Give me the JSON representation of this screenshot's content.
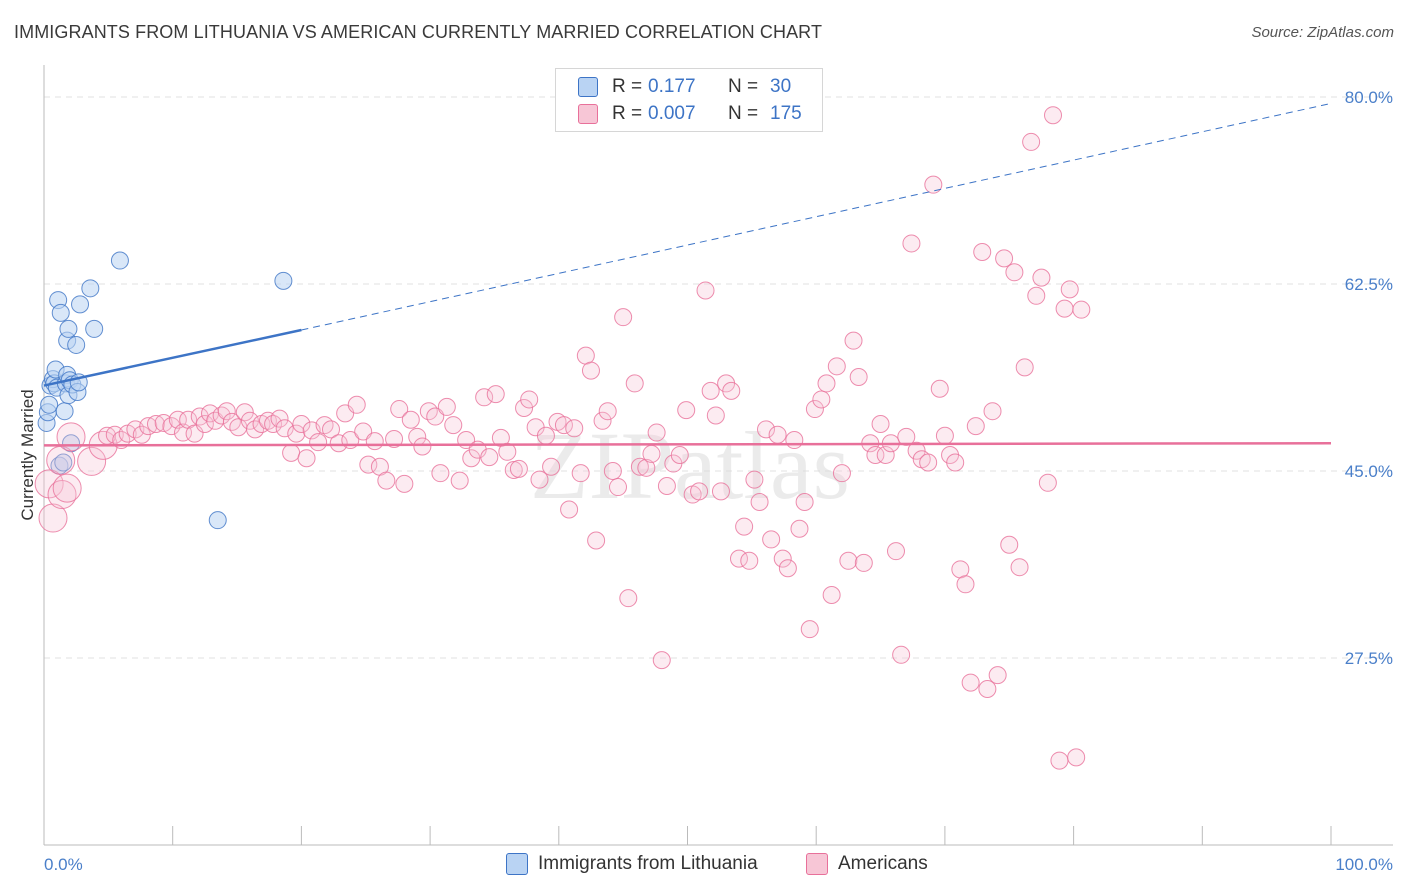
{
  "title": "IMMIGRANTS FROM LITHUANIA VS AMERICAN CURRENTLY MARRIED CORRELATION CHART",
  "source": "Source: ZipAtlas.com",
  "colors": {
    "blue": "#3d74c6",
    "blue_fill": "#b9d3f3",
    "pink": "#e8709a",
    "pink_fill": "#f7c6d6",
    "grid": "#e2e2e2",
    "tick_label": "#4a7fc9"
  },
  "legend": {
    "rows": [
      {
        "r_label": "R =",
        "r_value": "0.177",
        "n_label": "N =",
        "n_value": "30",
        "series": "blue"
      },
      {
        "r_label": "R =",
        "r_value": "0.007",
        "n_label": "N =",
        "n_value": "175",
        "series": "pink"
      }
    ]
  },
  "bottom_legend": {
    "items": [
      {
        "label": "Immigrants from Lithuania",
        "series": "blue"
      },
      {
        "label": "Americans",
        "series": "pink"
      }
    ]
  },
  "watermark": "ZIPatlas",
  "chart_data": {
    "type": "scatter",
    "title": "IMMIGRANTS FROM LITHUANIA VS AMERICAN CURRENTLY MARRIED CORRELATION CHART",
    "xlabel": "",
    "ylabel": "Currently Married",
    "xlim": [
      0,
      100
    ],
    "ylim": [
      10,
      83
    ],
    "x_tick_labels": [
      "0.0%",
      "100.0%"
    ],
    "y_ticks": [
      27.5,
      45.0,
      62.5,
      80.0
    ],
    "y_tick_labels": [
      "27.5%",
      "45.0%",
      "62.5%",
      "80.0%"
    ],
    "grid": true,
    "series": [
      {
        "name": "Immigrants from Lithuania",
        "color": "blue",
        "points": [
          [
            0.2,
            49.5
          ],
          [
            0.3,
            50.5
          ],
          [
            0.4,
            51.2
          ],
          [
            0.5,
            53.0
          ],
          [
            0.7,
            53.6
          ],
          [
            0.8,
            53.2
          ],
          [
            0.9,
            54.5
          ],
          [
            1.0,
            52.8
          ],
          [
            1.1,
            61.0
          ],
          [
            1.2,
            45.5
          ],
          [
            1.3,
            59.8
          ],
          [
            1.5,
            45.8
          ],
          [
            1.6,
            50.6
          ],
          [
            1.7,
            53.2
          ],
          [
            1.8,
            54.0
          ],
          [
            1.8,
            57.2
          ],
          [
            1.9,
            58.3
          ],
          [
            1.9,
            52.1
          ],
          [
            2.0,
            53.5
          ],
          [
            2.1,
            47.6
          ],
          [
            2.2,
            53.1
          ],
          [
            2.5,
            56.8
          ],
          [
            2.6,
            52.4
          ],
          [
            2.7,
            53.3
          ],
          [
            2.8,
            60.6
          ],
          [
            3.6,
            62.1
          ],
          [
            3.9,
            58.3
          ],
          [
            5.9,
            64.7
          ],
          [
            13.5,
            40.4
          ],
          [
            18.6,
            62.8
          ]
        ],
        "trend": {
          "x": [
            0,
            20
          ],
          "y": [
            53.0,
            58.2
          ],
          "dashed_to": [
            100,
            79.4
          ]
        }
      },
      {
        "name": "Americans",
        "color": "pink",
        "points": [
          [
            0.4,
            43.8
          ],
          [
            0.7,
            40.6
          ],
          [
            1.3,
            46.0
          ],
          [
            1.4,
            42.8
          ],
          [
            1.8,
            43.4
          ],
          [
            2.1,
            48.2
          ],
          [
            3.7,
            45.9
          ],
          [
            4.6,
            47.4
          ],
          [
            4.9,
            48.3
          ],
          [
            5.5,
            48.4
          ],
          [
            6.0,
            47.9
          ],
          [
            6.5,
            48.5
          ],
          [
            7.1,
            48.9
          ],
          [
            7.6,
            48.4
          ],
          [
            8.1,
            49.2
          ],
          [
            8.7,
            49.4
          ],
          [
            9.3,
            49.5
          ],
          [
            9.9,
            49.2
          ],
          [
            10.4,
            49.8
          ],
          [
            10.8,
            48.6
          ],
          [
            11.2,
            49.8
          ],
          [
            11.7,
            48.5
          ],
          [
            12.1,
            50.1
          ],
          [
            12.5,
            49.4
          ],
          [
            12.9,
            50.4
          ],
          [
            13.3,
            49.7
          ],
          [
            13.8,
            50.2
          ],
          [
            14.2,
            50.6
          ],
          [
            14.6,
            49.6
          ],
          [
            15.1,
            49.1
          ],
          [
            15.6,
            50.5
          ],
          [
            16.0,
            49.7
          ],
          [
            16.4,
            48.9
          ],
          [
            16.9,
            49.4
          ],
          [
            17.4,
            49.7
          ],
          [
            17.8,
            49.4
          ],
          [
            18.3,
            49.9
          ],
          [
            18.7,
            49.0
          ],
          [
            19.2,
            46.7
          ],
          [
            19.6,
            48.5
          ],
          [
            20.0,
            49.4
          ],
          [
            20.4,
            46.2
          ],
          [
            20.8,
            48.8
          ],
          [
            21.3,
            47.7
          ],
          [
            21.8,
            49.3
          ],
          [
            22.3,
            48.9
          ],
          [
            22.9,
            47.6
          ],
          [
            23.4,
            50.4
          ],
          [
            23.8,
            47.9
          ],
          [
            24.3,
            51.2
          ],
          [
            24.8,
            48.7
          ],
          [
            25.2,
            45.6
          ],
          [
            25.7,
            47.8
          ],
          [
            26.1,
            45.4
          ],
          [
            26.6,
            44.1
          ],
          [
            27.2,
            48.0
          ],
          [
            27.6,
            50.8
          ],
          [
            28.0,
            43.8
          ],
          [
            28.5,
            49.8
          ],
          [
            29.0,
            48.2
          ],
          [
            29.4,
            47.3
          ],
          [
            29.9,
            50.6
          ],
          [
            30.4,
            50.1
          ],
          [
            30.8,
            44.8
          ],
          [
            31.3,
            51.0
          ],
          [
            31.8,
            49.3
          ],
          [
            32.3,
            44.1
          ],
          [
            32.8,
            47.9
          ],
          [
            33.2,
            46.2
          ],
          [
            33.7,
            47.0
          ],
          [
            34.2,
            51.9
          ],
          [
            34.6,
            46.3
          ],
          [
            35.1,
            52.2
          ],
          [
            35.5,
            48.1
          ],
          [
            36.0,
            46.8
          ],
          [
            36.5,
            45.1
          ],
          [
            36.9,
            45.2
          ],
          [
            37.3,
            50.9
          ],
          [
            37.7,
            51.7
          ],
          [
            38.2,
            49.1
          ],
          [
            38.5,
            44.2
          ],
          [
            39.0,
            48.3
          ],
          [
            39.4,
            45.4
          ],
          [
            39.9,
            49.6
          ],
          [
            40.4,
            49.3
          ],
          [
            40.8,
            41.4
          ],
          [
            41.2,
            49.0
          ],
          [
            41.7,
            44.8
          ],
          [
            42.1,
            55.8
          ],
          [
            42.5,
            54.4
          ],
          [
            42.9,
            38.5
          ],
          [
            43.4,
            49.7
          ],
          [
            43.8,
            50.6
          ],
          [
            44.2,
            45.0
          ],
          [
            44.6,
            43.5
          ],
          [
            45.0,
            59.4
          ],
          [
            45.4,
            33.1
          ],
          [
            45.9,
            53.2
          ],
          [
            46.3,
            45.4
          ],
          [
            46.8,
            45.3
          ],
          [
            47.2,
            46.6
          ],
          [
            47.6,
            48.6
          ],
          [
            48.0,
            27.3
          ],
          [
            48.4,
            43.6
          ],
          [
            48.9,
            45.7
          ],
          [
            49.4,
            46.5
          ],
          [
            49.9,
            50.7
          ],
          [
            50.4,
            42.8
          ],
          [
            50.9,
            43.1
          ],
          [
            51.4,
            61.9
          ],
          [
            51.8,
            52.5
          ],
          [
            52.2,
            50.2
          ],
          [
            52.6,
            43.1
          ],
          [
            53.0,
            53.2
          ],
          [
            53.4,
            52.5
          ],
          [
            54.0,
            36.8
          ],
          [
            54.4,
            39.8
          ],
          [
            54.8,
            36.6
          ],
          [
            55.2,
            44.2
          ],
          [
            55.6,
            42.1
          ],
          [
            56.1,
            48.9
          ],
          [
            56.5,
            38.6
          ],
          [
            57.0,
            48.4
          ],
          [
            57.4,
            36.8
          ],
          [
            57.8,
            35.9
          ],
          [
            58.3,
            47.9
          ],
          [
            58.7,
            39.6
          ],
          [
            59.1,
            42.1
          ],
          [
            59.5,
            30.2
          ],
          [
            59.9,
            50.8
          ],
          [
            60.4,
            51.7
          ],
          [
            60.8,
            53.2
          ],
          [
            61.2,
            33.4
          ],
          [
            61.6,
            54.8
          ],
          [
            62.0,
            44.8
          ],
          [
            62.5,
            36.6
          ],
          [
            62.9,
            57.2
          ],
          [
            63.3,
            53.8
          ],
          [
            63.7,
            36.4
          ],
          [
            64.2,
            47.6
          ],
          [
            64.6,
            46.5
          ],
          [
            65.0,
            49.4
          ],
          [
            65.4,
            46.5
          ],
          [
            65.8,
            47.6
          ],
          [
            66.2,
            37.5
          ],
          [
            66.6,
            27.8
          ],
          [
            67.0,
            48.2
          ],
          [
            67.4,
            66.3
          ],
          [
            67.8,
            46.9
          ],
          [
            68.2,
            46.1
          ],
          [
            68.7,
            45.8
          ],
          [
            69.1,
            71.8
          ],
          [
            69.6,
            52.7
          ],
          [
            70.0,
            48.3
          ],
          [
            70.4,
            46.5
          ],
          [
            70.8,
            45.8
          ],
          [
            71.2,
            35.8
          ],
          [
            71.6,
            34.4
          ],
          [
            72.0,
            25.2
          ],
          [
            72.4,
            49.2
          ],
          [
            72.9,
            65.5
          ],
          [
            73.3,
            24.6
          ],
          [
            73.7,
            50.6
          ],
          [
            74.1,
            25.9
          ],
          [
            74.6,
            64.9
          ],
          [
            75.0,
            38.1
          ],
          [
            75.4,
            63.6
          ],
          [
            75.8,
            36.0
          ],
          [
            76.2,
            54.7
          ],
          [
            76.7,
            75.8
          ],
          [
            77.1,
            61.4
          ],
          [
            77.5,
            63.1
          ],
          [
            78.0,
            43.9
          ],
          [
            78.4,
            78.3
          ],
          [
            78.9,
            17.9
          ],
          [
            79.3,
            60.2
          ],
          [
            79.7,
            62.0
          ],
          [
            80.2,
            18.2
          ],
          [
            80.6,
            60.1
          ]
        ],
        "trend": {
          "x": [
            0,
            100
          ],
          "y": [
            47.4,
            47.6
          ]
        }
      }
    ]
  }
}
